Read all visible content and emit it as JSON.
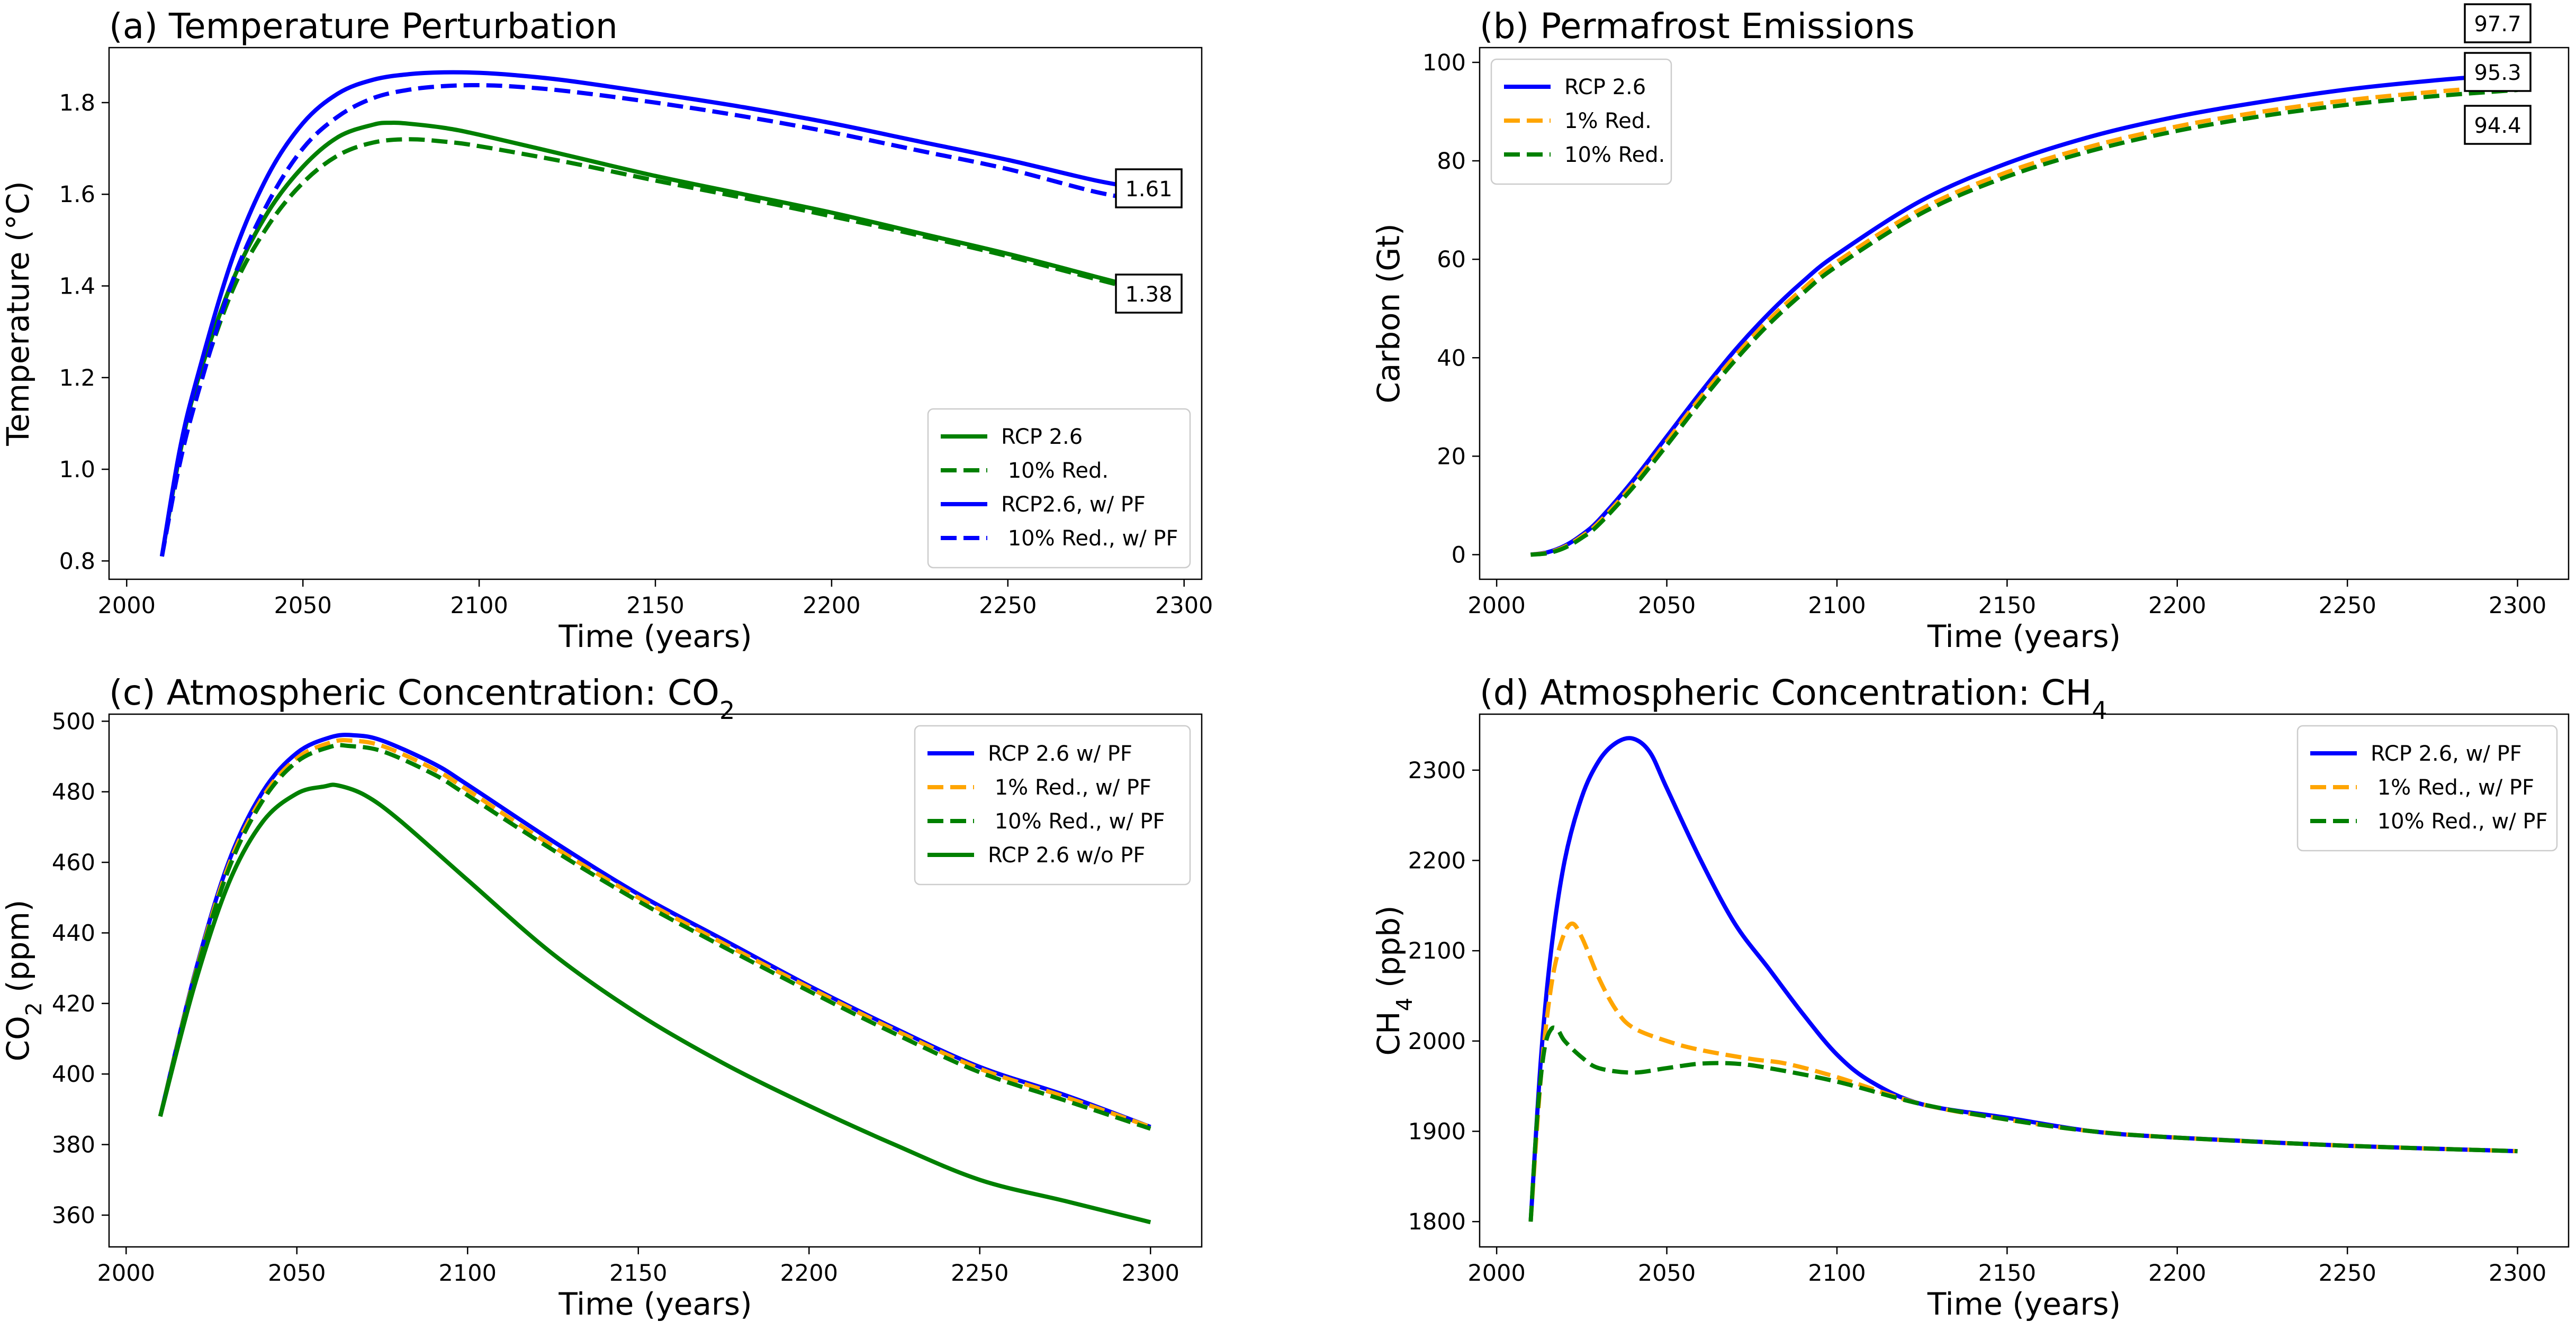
{
  "chart_data": [
    {
      "type": "line",
      "panel": "a",
      "title": "(a) Temperature Perturbation",
      "xlabel": "Time (years)",
      "ylabel": "Temperature (°C)",
      "xlim": [
        1995,
        2305
      ],
      "ylim": [
        0.76,
        1.92
      ],
      "xticks": [
        2000,
        2050,
        2100,
        2150,
        2200,
        2250,
        2300
      ],
      "yticks": [
        0.8,
        1.0,
        1.2,
        1.4,
        1.6,
        1.8
      ],
      "ytick_decimals": 1,
      "legend_position": "lower-right",
      "series": [
        {
          "name": "RCP 2.6",
          "color": "#008000",
          "dash": "solid",
          "x": [
            2010,
            2015,
            2020,
            2030,
            2040,
            2050,
            2060,
            2070,
            2075,
            2080,
            2090,
            2100,
            2125,
            2150,
            2175,
            2200,
            2225,
            2250,
            2275,
            2290
          ],
          "y": [
            0.81,
            1.03,
            1.19,
            1.41,
            1.56,
            1.66,
            1.725,
            1.752,
            1.756,
            1.754,
            1.745,
            1.73,
            1.685,
            1.64,
            1.6,
            1.56,
            1.515,
            1.47,
            1.42,
            1.39
          ]
        },
        {
          "name": " 10% Red.",
          "color": "#008000",
          "dash": "dashed",
          "x": [
            2010,
            2015,
            2020,
            2030,
            2040,
            2050,
            2060,
            2070,
            2080,
            2090,
            2100,
            2125,
            2150,
            2175,
            2200,
            2225,
            2250,
            2275,
            2290
          ],
          "y": [
            0.81,
            1.02,
            1.17,
            1.39,
            1.53,
            1.625,
            1.685,
            1.713,
            1.72,
            1.715,
            1.705,
            1.67,
            1.63,
            1.592,
            1.552,
            1.51,
            1.465,
            1.415,
            1.385
          ]
        },
        {
          "name": "RCP2.6, w/ PF",
          "color": "#0000ff",
          "dash": "solid",
          "x": [
            2010,
            2015,
            2020,
            2030,
            2040,
            2050,
            2060,
            2070,
            2080,
            2090,
            2100,
            2110,
            2125,
            2150,
            2175,
            2200,
            2225,
            2250,
            2275,
            2290
          ],
          "y": [
            0.81,
            1.04,
            1.2,
            1.46,
            1.64,
            1.755,
            1.82,
            1.85,
            1.862,
            1.866,
            1.865,
            1.86,
            1.848,
            1.82,
            1.79,
            1.755,
            1.715,
            1.675,
            1.63,
            1.61
          ]
        },
        {
          "name": " 10% Red., w/ PF",
          "color": "#0000ff",
          "dash": "dashed",
          "x": [
            2010,
            2015,
            2020,
            2030,
            2040,
            2050,
            2060,
            2070,
            2080,
            2090,
            2100,
            2110,
            2125,
            2150,
            2175,
            2200,
            2225,
            2250,
            2275,
            2290
          ],
          "y": [
            0.81,
            1.01,
            1.16,
            1.41,
            1.58,
            1.7,
            1.77,
            1.81,
            1.828,
            1.836,
            1.838,
            1.835,
            1.825,
            1.8,
            1.77,
            1.735,
            1.695,
            1.655,
            1.605,
            1.585
          ]
        }
      ],
      "annotations": [
        {
          "text": "1.61",
          "x": 2289,
          "y": 1.61
        },
        {
          "text": "1.38",
          "x": 2289,
          "y": 1.38
        }
      ]
    },
    {
      "type": "line",
      "panel": "b",
      "title": "(b) Permafrost Emissions",
      "xlabel": "Time (years)",
      "ylabel": "Carbon (Gt)",
      "xlim": [
        1995,
        2315
      ],
      "ylim": [
        -5,
        103
      ],
      "xticks": [
        2000,
        2050,
        2100,
        2150,
        2200,
        2250,
        2300
      ],
      "yticks": [
        0,
        20,
        40,
        60,
        80,
        100
      ],
      "ytick_decimals": 0,
      "legend_position": "upper-left",
      "series": [
        {
          "name": "RCP 2.6",
          "color": "#0000ff",
          "dash": "solid",
          "x": [
            2010,
            2015,
            2020,
            2025,
            2030,
            2040,
            2050,
            2060,
            2070,
            2080,
            2090,
            2100,
            2125,
            2150,
            2175,
            2200,
            2225,
            2250,
            2275,
            2300
          ],
          "y": [
            0,
            0.5,
            1.8,
            4,
            7,
            15,
            24,
            33,
            41.5,
            49,
            55.5,
            61,
            72,
            79.5,
            85,
            89,
            92,
            94.5,
            96.3,
            97.7
          ]
        },
        {
          "name": "1% Red.",
          "color": "#ffa500",
          "dash": "dashed",
          "x": [
            2010,
            2015,
            2020,
            2025,
            2030,
            2040,
            2050,
            2060,
            2070,
            2080,
            2090,
            2100,
            2125,
            2150,
            2175,
            2200,
            2225,
            2250,
            2275,
            2300
          ],
          "y": [
            0,
            0.4,
            1.6,
            3.7,
            6.5,
            14.2,
            23,
            32,
            40.3,
            47.7,
            54,
            59.5,
            70.3,
            77.7,
            83,
            87,
            90,
            92.3,
            94,
            95.3
          ]
        },
        {
          "name": "10% Red.",
          "color": "#008000",
          "dash": "dashed",
          "x": [
            2010,
            2015,
            2020,
            2025,
            2030,
            2040,
            2050,
            2060,
            2070,
            2080,
            2090,
            2100,
            2125,
            2150,
            2175,
            2200,
            2225,
            2250,
            2275,
            2300
          ],
          "y": [
            0,
            0.3,
            1.4,
            3.4,
            6.1,
            13.6,
            22.2,
            31.1,
            39.4,
            46.8,
            53.1,
            58.6,
            69.4,
            76.8,
            82.1,
            86.1,
            89.1,
            91.4,
            93.1,
            94.4
          ]
        }
      ],
      "annotations": [
        {
          "text": "97.7",
          "x": 2300,
          "y": 97.7
        },
        {
          "text": "95.3",
          "x": 2300,
          "y": 95.3
        },
        {
          "text": "94.4",
          "x": 2300,
          "y": 94.4
        }
      ]
    },
    {
      "type": "line",
      "panel": "c",
      "title_parts": [
        "(c) Atmospheric Concentration: CO",
        "2"
      ],
      "xlabel": "Time (years)",
      "ylabel_parts": [
        "CO",
        "2",
        " (ppm)"
      ],
      "xlim": [
        1995,
        2315
      ],
      "ylim": [
        351,
        502
      ],
      "xticks": [
        2000,
        2050,
        2100,
        2150,
        2200,
        2250,
        2300
      ],
      "yticks": [
        360,
        380,
        400,
        420,
        440,
        460,
        480,
        500
      ],
      "ytick_decimals": 0,
      "legend_position": "upper-right",
      "series": [
        {
          "name": "RCP 2.6 w/ PF",
          "color": "#0000ff",
          "dash": "solid",
          "x": [
            2010,
            2020,
            2030,
            2040,
            2050,
            2060,
            2067,
            2075,
            2090,
            2100,
            2125,
            2150,
            2175,
            2200,
            2225,
            2250,
            2275,
            2300
          ],
          "y": [
            388,
            428,
            460,
            480,
            491,
            495.5,
            496,
            494.5,
            488,
            482,
            466,
            451,
            438,
            425,
            413,
            402,
            394,
            385
          ]
        },
        {
          "name": " 1% Red., w/ PF",
          "color": "#ffa500",
          "dash": "dashed",
          "x": [
            2010,
            2020,
            2030,
            2040,
            2050,
            2060,
            2066,
            2075,
            2090,
            2100,
            2125,
            2150,
            2175,
            2200,
            2225,
            2250,
            2275,
            2300
          ],
          "y": [
            388,
            427.5,
            459,
            478.5,
            489.5,
            494,
            494.5,
            493,
            486.5,
            480.5,
            464.5,
            450,
            437,
            424.5,
            412.5,
            401.5,
            393.5,
            385
          ]
        },
        {
          "name": " 10% Red., w/ PF",
          "color": "#008000",
          "dash": "dashed",
          "x": [
            2010,
            2020,
            2030,
            2040,
            2050,
            2060,
            2065,
            2075,
            2090,
            2100,
            2125,
            2150,
            2175,
            2200,
            2225,
            2250,
            2275,
            2300
          ],
          "y": [
            388,
            427,
            458,
            477.5,
            488.5,
            492.8,
            493,
            491.5,
            485,
            479,
            463.5,
            449,
            436,
            423.5,
            411.5,
            400.5,
            392.5,
            384.5
          ]
        },
        {
          "name": "RCP 2.6 w/o PF",
          "color": "#008000",
          "dash": "solid",
          "x": [
            2010,
            2020,
            2030,
            2040,
            2050,
            2058,
            2062,
            2070,
            2080,
            2100,
            2125,
            2150,
            2175,
            2200,
            2225,
            2250,
            2275,
            2300
          ],
          "y": [
            388,
            425,
            454,
            471.5,
            479.5,
            481.5,
            481.8,
            479,
            472,
            455,
            434,
            417,
            403,
            391,
            380,
            370,
            364,
            358
          ]
        }
      ]
    },
    {
      "type": "line",
      "panel": "d",
      "title_parts": [
        "(d) Atmospheric Concentration: CH",
        "4"
      ],
      "xlabel": "Time (years)",
      "ylabel_parts": [
        "CH",
        "4",
        " (ppb)"
      ],
      "xlim": [
        1995,
        2315
      ],
      "ylim": [
        1772,
        2362
      ],
      "xticks": [
        2000,
        2050,
        2100,
        2150,
        2200,
        2250,
        2300
      ],
      "yticks": [
        1800,
        1900,
        2000,
        2100,
        2200,
        2300
      ],
      "ytick_decimals": 0,
      "legend_position": "upper-right",
      "series": [
        {
          "name": "RCP 2.6, w/ PF",
          "color": "#0000ff",
          "dash": "solid",
          "x": [
            2010,
            2013,
            2016,
            2020,
            2025,
            2030,
            2035,
            2040,
            2045,
            2050,
            2060,
            2070,
            2080,
            2090,
            2100,
            2110,
            2125,
            2150,
            2175,
            2200,
            2250,
            2300
          ],
          "y": [
            1800,
            1980,
            2100,
            2200,
            2270,
            2310,
            2330,
            2335,
            2320,
            2280,
            2200,
            2130,
            2080,
            2030,
            1985,
            1955,
            1930,
            1915,
            1900,
            1893,
            1884,
            1878
          ]
        },
        {
          "name": " 1% Red., w/ PF",
          "color": "#ffa500",
          "dash": "dashed",
          "x": [
            2010,
            2013,
            2016,
            2019,
            2022,
            2025,
            2030,
            2035,
            2040,
            2050,
            2060,
            2075,
            2085,
            2100,
            2125,
            2150,
            2175,
            2200,
            2250,
            2300
          ],
          "y": [
            1800,
            1960,
            2060,
            2110,
            2130,
            2115,
            2070,
            2035,
            2015,
            2000,
            1990,
            1980,
            1975,
            1960,
            1930,
            1913,
            1900,
            1893,
            1884,
            1878
          ]
        },
        {
          "name": " 10% Red., w/ PF",
          "color": "#008000",
          "dash": "dashed",
          "x": [
            2010,
            2012,
            2014,
            2016,
            2018,
            2020,
            2025,
            2030,
            2040,
            2050,
            2060,
            2070,
            2080,
            2100,
            2125,
            2150,
            2175,
            2200,
            2250,
            2300
          ],
          "y": [
            1800,
            1920,
            1990,
            2013,
            2012,
            2000,
            1982,
            1970,
            1965,
            1970,
            1975,
            1975,
            1970,
            1955,
            1930,
            1913,
            1900,
            1893,
            1884,
            1878
          ]
        }
      ]
    }
  ]
}
